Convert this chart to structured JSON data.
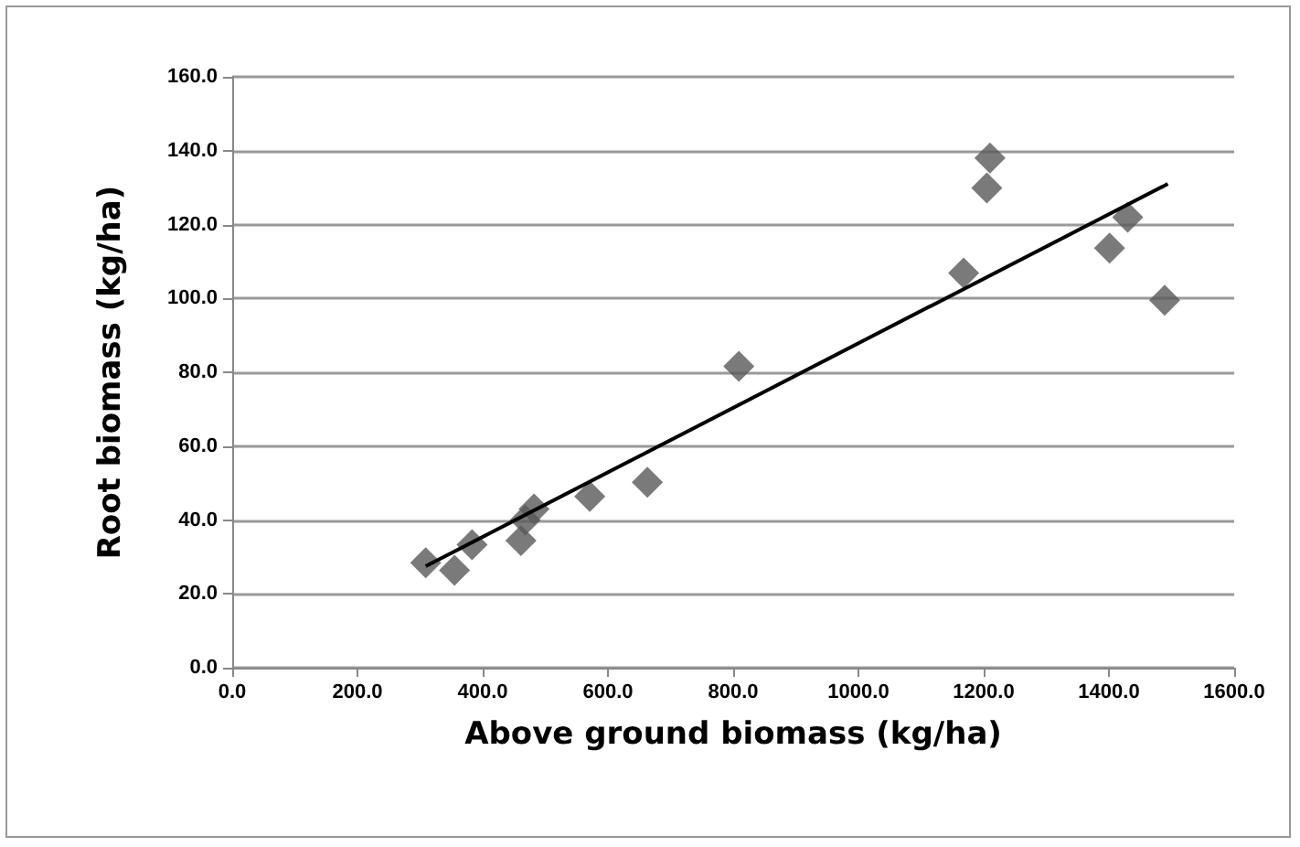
{
  "chart_data": {
    "type": "scatter",
    "xlabel": "Above ground biomass (kg/ha)",
    "ylabel": "Root biomass (kg/ha)",
    "xlim": [
      0,
      1600
    ],
    "ylim": [
      0,
      160
    ],
    "xticks": [
      {
        "value": 0,
        "label": "0.0"
      },
      {
        "value": 200,
        "label": "200.0"
      },
      {
        "value": 400,
        "label": "400.0"
      },
      {
        "value": 600,
        "label": "600.0"
      },
      {
        "value": 800,
        "label": "800.0"
      },
      {
        "value": 1000,
        "label": "1000.0"
      },
      {
        "value": 1200,
        "label": "1200.0"
      },
      {
        "value": 1400,
        "label": "1400.0"
      },
      {
        "value": 1600,
        "label": "1600.0"
      }
    ],
    "yticks": [
      {
        "value": 0,
        "label": "0.0"
      },
      {
        "value": 20,
        "label": "20.0"
      },
      {
        "value": 40,
        "label": "40.0"
      },
      {
        "value": 60,
        "label": "60.0"
      },
      {
        "value": 80,
        "label": "80.0"
      },
      {
        "value": 100,
        "label": "100.0"
      },
      {
        "value": 120,
        "label": "120.0"
      },
      {
        "value": 140,
        "label": "140.0"
      },
      {
        "value": 160,
        "label": "160.0"
      }
    ],
    "grid": "y",
    "series": [
      {
        "marker": "diamond",
        "color": "#595959",
        "x": [
          309,
          355,
          383,
          461,
          468,
          482,
          571,
          663,
          809,
          1168,
          1205,
          1210,
          1401,
          1430,
          1489
        ],
        "values": [
          28.4,
          26.4,
          33.3,
          34.4,
          40,
          43,
          46.4,
          50.2,
          81.6,
          106.9,
          129.9,
          138,
          113.6,
          122,
          99.5
        ]
      },
      {
        "type": "line",
        "marker": "none",
        "line_style": "solid",
        "color": "#000000",
        "x": [
          309,
          1494
        ],
        "values": [
          27.5,
          131
        ]
      }
    ]
  }
}
